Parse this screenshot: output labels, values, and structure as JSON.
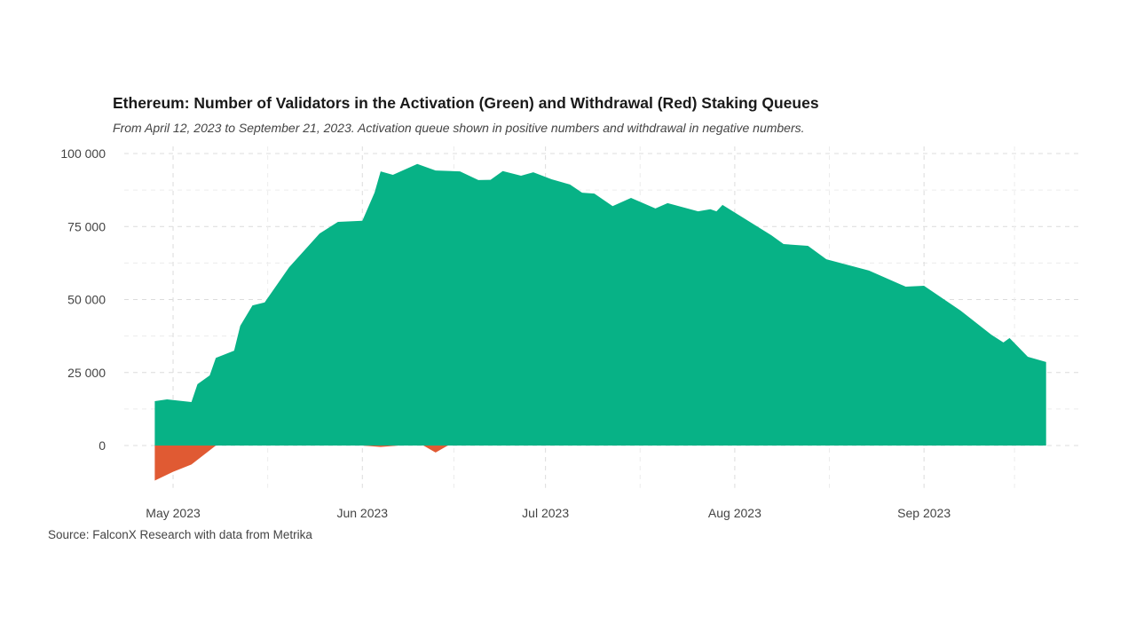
{
  "chart_data": {
    "type": "area",
    "title": "Ethereum: Number of Validators in the Activation (Green) and Withdrawal (Red) Staking Queues",
    "subtitle": "From April 12, 2023 to September 21, 2023. Activation queue shown in positive numbers and withdrawal in negative numbers.",
    "source": "Source: FalconX Research with data from Metrika",
    "xlabel": "",
    "ylabel": "",
    "xlim": [
      "2023-04-23",
      "2023-09-27"
    ],
    "ylim": [
      -13000,
      100000
    ],
    "grid": true,
    "x_ticks": [
      {
        "date": "2023-05-01",
        "label": "May 2023"
      },
      {
        "date": "2023-06-01",
        "label": "Jun 2023"
      },
      {
        "date": "2023-07-01",
        "label": "Jul 2023"
      },
      {
        "date": "2023-08-01",
        "label": "Aug 2023"
      },
      {
        "date": "2023-09-01",
        "label": "Sep 2023"
      }
    ],
    "y_ticks": [
      {
        "value": 0,
        "label": "0"
      },
      {
        "value": 25000,
        "label": "25 000"
      },
      {
        "value": 50000,
        "label": "50 000"
      },
      {
        "value": 75000,
        "label": "75 000"
      },
      {
        "value": 100000,
        "label": "100 000"
      }
    ],
    "colors": {
      "activation": "#07b286",
      "withdrawal": "#e05a33"
    },
    "series": [
      {
        "key": "activation",
        "x": [
          "2023-04-28",
          "2023-04-30",
          "2023-05-04",
          "2023-05-05",
          "2023-05-07",
          "2023-05-08",
          "2023-05-11",
          "2023-05-12",
          "2023-05-14",
          "2023-05-16",
          "2023-05-20",
          "2023-05-25",
          "2023-05-28",
          "2023-06-01",
          "2023-06-03",
          "2023-06-04",
          "2023-06-06",
          "2023-06-10",
          "2023-06-13",
          "2023-06-17",
          "2023-06-20",
          "2023-06-22",
          "2023-06-24",
          "2023-06-27",
          "2023-06-29",
          "2023-07-02",
          "2023-07-05",
          "2023-07-07",
          "2023-07-09",
          "2023-07-12",
          "2023-07-15",
          "2023-07-19",
          "2023-07-21",
          "2023-07-26",
          "2023-07-28",
          "2023-07-29",
          "2023-07-30",
          "2023-08-07",
          "2023-08-09",
          "2023-08-13",
          "2023-08-16",
          "2023-08-23",
          "2023-08-29",
          "2023-09-01",
          "2023-09-07",
          "2023-09-12",
          "2023-09-14",
          "2023-09-15",
          "2023-09-18",
          "2023-09-21"
        ],
        "values": [
          15200,
          15800,
          14900,
          21000,
          24000,
          30000,
          32500,
          41000,
          48000,
          49000,
          61000,
          72600,
          76600,
          77000,
          86600,
          93900,
          92700,
          96400,
          94200,
          93900,
          90900,
          91000,
          94000,
          92400,
          93600,
          91200,
          89400,
          86600,
          86300,
          82000,
          84800,
          81200,
          83000,
          80200,
          80900,
          80200,
          82400,
          72000,
          69000,
          68400,
          63800,
          59900,
          54400,
          54700,
          46200,
          38000,
          35300,
          36800,
          30400,
          28600
        ]
      },
      {
        "key": "withdrawal",
        "x": [
          "2023-04-28",
          "2023-05-01",
          "2023-05-04",
          "2023-05-08",
          "2023-06-01",
          "2023-06-04",
          "2023-06-07",
          "2023-06-11",
          "2023-06-13",
          "2023-06-15",
          "2023-09-21"
        ],
        "values": [
          -12000,
          -9000,
          -6500,
          0,
          0,
          -500,
          0,
          0,
          -2400,
          0,
          0
        ]
      }
    ]
  }
}
